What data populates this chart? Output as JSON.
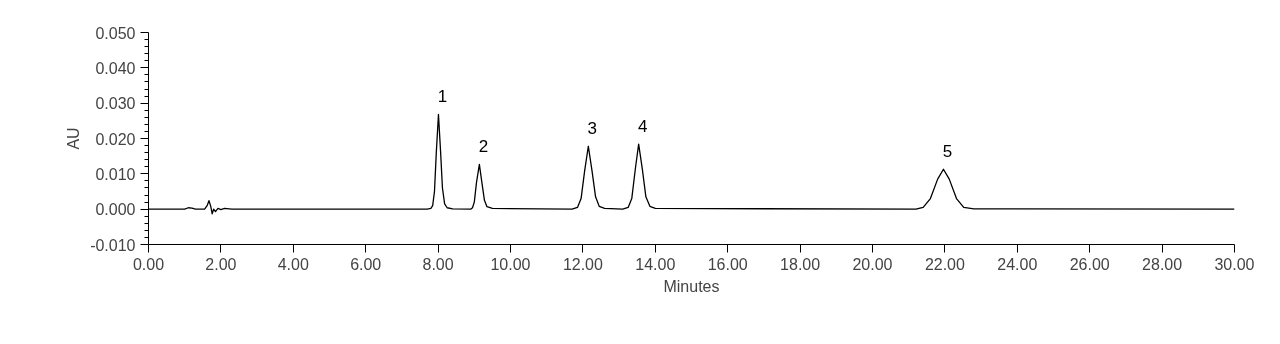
{
  "chart_data": {
    "type": "line",
    "xlabel": "Minutes",
    "ylabel": "AU",
    "x": [
      0,
      1.0,
      1.1,
      1.2,
      1.3,
      1.55,
      1.62,
      1.67,
      1.72,
      1.76,
      1.8,
      1.85,
      1.92,
      2.0,
      2.1,
      2.3,
      7.7,
      7.8,
      7.85,
      7.9,
      7.95,
      8.01,
      8.07,
      8.12,
      8.18,
      8.25,
      8.4,
      8.9,
      8.95,
      9.0,
      9.06,
      9.14,
      9.21,
      9.28,
      9.35,
      9.5,
      11.7,
      11.85,
      11.95,
      12.05,
      12.15,
      12.25,
      12.35,
      12.45,
      12.6,
      13.1,
      13.25,
      13.35,
      13.45,
      13.54,
      13.64,
      13.74,
      13.85,
      14.0,
      21.2,
      21.4,
      21.6,
      21.8,
      21.96,
      22.12,
      22.32,
      22.52,
      22.8,
      30
    ],
    "series": [
      {
        "color": "#000000",
        "values": [
          0,
          0,
          0.0004,
          0.0003,
          0,
          0,
          0.001,
          0.0024,
          0.0008,
          -0.0013,
          0,
          -0.0007,
          0.0002,
          -0.0001,
          0.0002,
          0,
          0,
          0.0002,
          0.001,
          0.005,
          0.016,
          0.0268,
          0.016,
          0.006,
          0.0015,
          0.0004,
          0.0001,
          0,
          0.0004,
          0.002,
          0.0075,
          0.0127,
          0.0075,
          0.0025,
          0.0007,
          0.0002,
          0,
          0.0005,
          0.003,
          0.011,
          0.0178,
          0.011,
          0.0035,
          0.0008,
          0.0002,
          0,
          0.0005,
          0.003,
          0.0115,
          0.0184,
          0.0115,
          0.0035,
          0.0008,
          0.0002,
          0,
          0.0005,
          0.003,
          0.0085,
          0.0113,
          0.0085,
          0.003,
          0.0005,
          0.0001,
          0
        ]
      }
    ],
    "annotations": [
      {
        "text": "1",
        "x": 8.01,
        "y": 0.0268
      },
      {
        "text": "2",
        "x": 9.14,
        "y": 0.0127
      },
      {
        "text": "3",
        "x": 12.15,
        "y": 0.0178
      },
      {
        "text": "4",
        "x": 13.54,
        "y": 0.0184
      },
      {
        "text": "5",
        "x": 21.96,
        "y": 0.0113
      }
    ],
    "xlim": [
      0,
      30
    ],
    "ylim": [
      -0.01,
      0.05
    ],
    "xticks": [
      {
        "value": 0,
        "label": "0.00"
      },
      {
        "value": 2,
        "label": "2.00"
      },
      {
        "value": 4,
        "label": "4.00"
      },
      {
        "value": 6,
        "label": "6.00"
      },
      {
        "value": 8,
        "label": "8.00"
      },
      {
        "value": 10,
        "label": "10.00"
      },
      {
        "value": 12,
        "label": "12.00"
      },
      {
        "value": 14,
        "label": "14.00"
      },
      {
        "value": 16,
        "label": "16.00"
      },
      {
        "value": 18,
        "label": "18.00"
      },
      {
        "value": 20,
        "label": "20.00"
      },
      {
        "value": 22,
        "label": "22.00"
      },
      {
        "value": 24,
        "label": "24.00"
      },
      {
        "value": 26,
        "label": "26.00"
      },
      {
        "value": 28,
        "label": "28.00"
      },
      {
        "value": 30,
        "label": "30.00"
      }
    ],
    "yticks": [
      {
        "value": -0.01,
        "label": "-0.010"
      },
      {
        "value": -0.008,
        "label": null
      },
      {
        "value": -0.006,
        "label": null
      },
      {
        "value": -0.004,
        "label": null
      },
      {
        "value": -0.002,
        "label": null
      },
      {
        "value": 0,
        "label": "0.000"
      },
      {
        "value": 0.002,
        "label": null
      },
      {
        "value": 0.004,
        "label": null
      },
      {
        "value": 0.006,
        "label": null
      },
      {
        "value": 0.008,
        "label": null
      },
      {
        "value": 0.01,
        "label": "0.010"
      },
      {
        "value": 0.012,
        "label": null
      },
      {
        "value": 0.014,
        "label": null
      },
      {
        "value": 0.016,
        "label": null
      },
      {
        "value": 0.018,
        "label": null
      },
      {
        "value": 0.02,
        "label": "0.020"
      },
      {
        "value": 0.022,
        "label": null
      },
      {
        "value": 0.024,
        "label": null
      },
      {
        "value": 0.026,
        "label": null
      },
      {
        "value": 0.028,
        "label": null
      },
      {
        "value": 0.03,
        "label": "0.030"
      },
      {
        "value": 0.032,
        "label": null
      },
      {
        "value": 0.034,
        "label": null
      },
      {
        "value": 0.036,
        "label": null
      },
      {
        "value": 0.038,
        "label": null
      },
      {
        "value": 0.04,
        "label": "0.040"
      },
      {
        "value": 0.042,
        "label": null
      },
      {
        "value": 0.044,
        "label": null
      },
      {
        "value": 0.046,
        "label": null
      },
      {
        "value": 0.048,
        "label": null
      },
      {
        "value": 0.05,
        "label": "0.050"
      }
    ],
    "grid": false,
    "marker": "none",
    "line_style": "solid"
  }
}
